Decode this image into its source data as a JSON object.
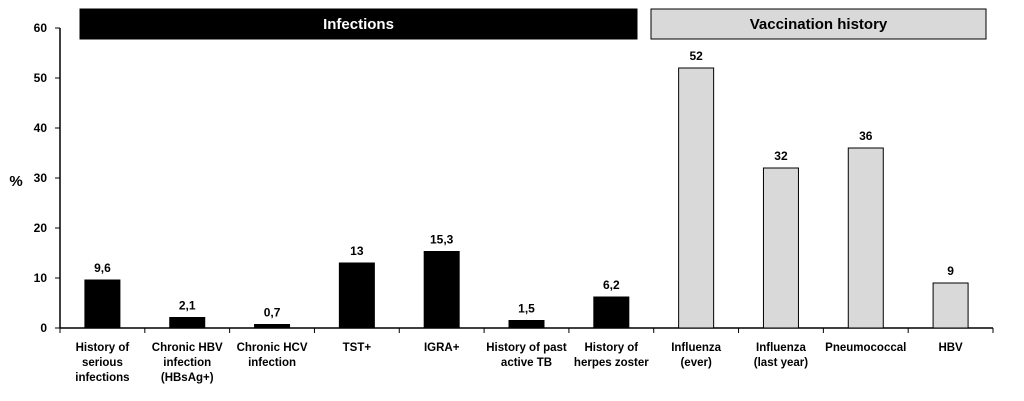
{
  "chart_data": {
    "type": "bar",
    "ylabel": "%",
    "ylim": [
      0,
      60
    ],
    "yticks": [
      "0",
      "10",
      "20",
      "30",
      "40",
      "50",
      "60"
    ],
    "grid": false,
    "groups": [
      {
        "name": "Infections",
        "fill": "#000000",
        "text_color": "#ffffff",
        "border": "#000000",
        "categories": [
          {
            "label": [
              "History of",
              "serious",
              "infections"
            ],
            "value": 9.6,
            "display": "9,6"
          },
          {
            "label": [
              "Chronic HBV",
              "infection",
              "(HBsAg+)"
            ],
            "value": 2.1,
            "display": "2,1"
          },
          {
            "label": [
              "Chronic HCV",
              "infection"
            ],
            "value": 0.7,
            "display": "0,7"
          },
          {
            "label": [
              "TST+"
            ],
            "value": 13,
            "display": "13"
          },
          {
            "label": [
              "IGRA+"
            ],
            "value": 15.3,
            "display": "15,3"
          },
          {
            "label": [
              "History of past",
              "active TB"
            ],
            "value": 1.5,
            "display": "1,5"
          },
          {
            "label": [
              "History of",
              "herpes zoster"
            ],
            "value": 6.2,
            "display": "6,2"
          }
        ]
      },
      {
        "name": "Vaccination history",
        "fill": "#d9d9d9",
        "text_color": "#000000",
        "border": "#000000",
        "categories": [
          {
            "label": [
              "Influenza",
              "(ever)"
            ],
            "value": 52,
            "display": "52"
          },
          {
            "label": [
              "Influenza",
              "(last year)"
            ],
            "value": 32,
            "display": "32"
          },
          {
            "label": [
              "Pneumococcal"
            ],
            "value": 36,
            "display": "36"
          },
          {
            "label": [
              "HBV"
            ],
            "value": 9,
            "display": "9"
          }
        ]
      }
    ]
  }
}
